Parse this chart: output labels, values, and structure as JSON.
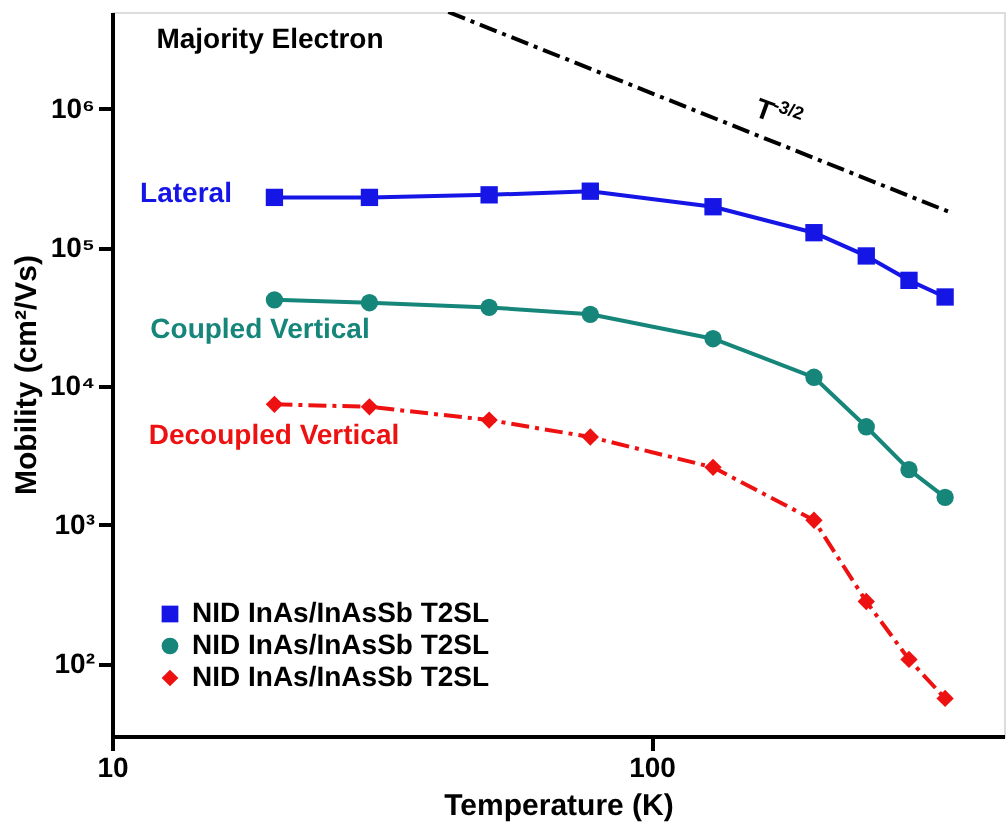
{
  "chart_data": {
    "type": "line",
    "xlabel": "Temperature (K)",
    "ylabel": "Mobility (cm²/Vs)",
    "x": [
      20,
      30,
      50,
      77,
      130,
      200,
      250,
      300,
      350
    ],
    "series": [
      {
        "name": "NID InAs/InAsSb T2SL",
        "color": "#1515e6",
        "marker": "square",
        "line_style": "solid",
        "values": [
          230000,
          230000,
          240000,
          255000,
          197000,
          128000,
          87000,
          58000,
          44000
        ]
      },
      {
        "name": "NID InAs/InAsSb T2SL",
        "color": "#16857a",
        "marker": "circle",
        "line_style": "solid",
        "values": [
          42000,
          40000,
          37000,
          33000,
          22000,
          11600,
          5100,
          2500,
          1580
        ]
      },
      {
        "name": "NID InAs/InAsSb T2SL",
        "color": "#ee1111",
        "marker": "diamond",
        "line_style": "dashed",
        "values": [
          7400,
          7100,
          5700,
          4300,
          2600,
          1080,
          280,
          107,
          56
        ]
      },
      {
        "type": "line",
        "color": "#000000",
        "marker": "none",
        "line_style": "dashed",
        "x": [
          42,
          357
        ],
        "values": [
          5000000,
          180000
        ]
      }
    ],
    "annotations": [
      "Lateral",
      "Coupled Vertical",
      "Decoupled Vertical",
      "Majority Electron",
      "T$^{-3/2}$"
    ],
    "log": "xy",
    "xlim": [
      10,
      450
    ],
    "xticks": [
      10,
      100
    ],
    "ylim": [
      30,
      5000000
    ],
    "yticks": [
      {
        "value": 100,
        "label": "10²"
      },
      {
        "value": 1000,
        "label": "10³"
      },
      {
        "value": 10000,
        "label": "10⁴"
      },
      {
        "value": 100000,
        "label": "10⁵"
      },
      {
        "value": 1000000,
        "label": "10⁶"
      }
    ],
    "legend": "bottom left",
    "grid": false
  }
}
